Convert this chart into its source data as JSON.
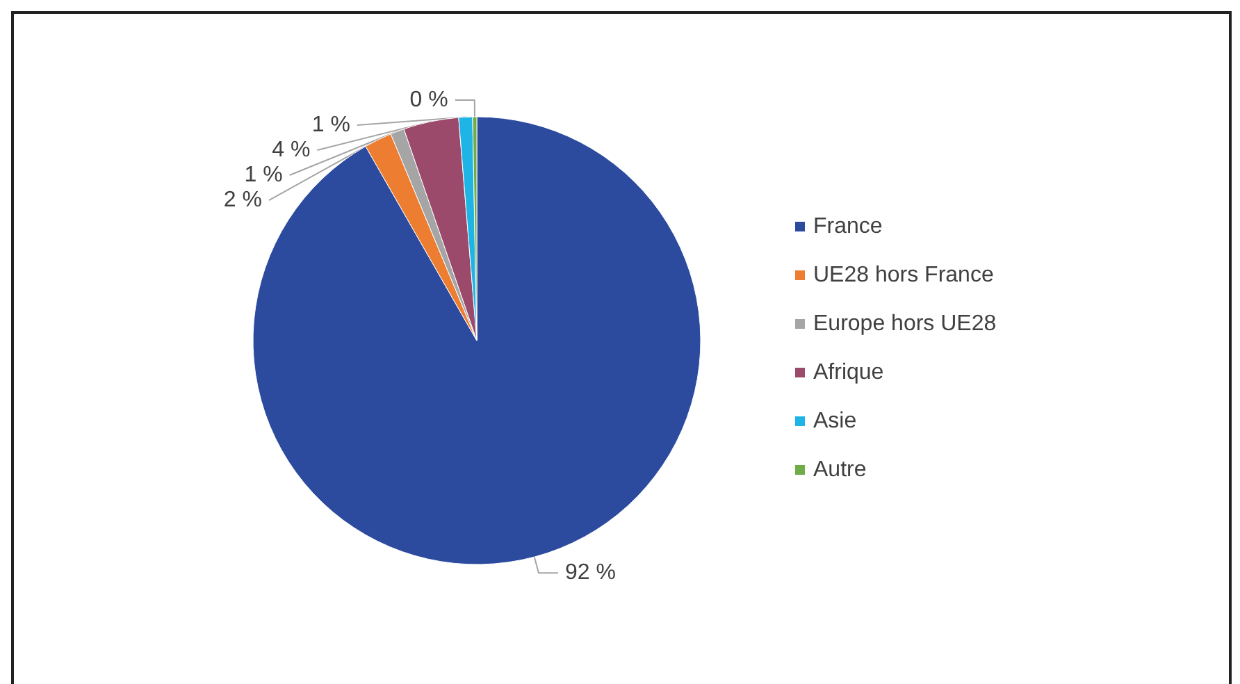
{
  "chart_data": {
    "type": "pie",
    "categories": [
      "France",
      "UE28 hors France",
      "Europe hors UE28",
      "Afrique",
      "Asie",
      "Autre"
    ],
    "values": [
      92,
      2,
      1,
      4,
      1,
      0.3
    ],
    "value_labels": [
      "92 %",
      "2 %",
      "1 %",
      "4 %",
      "1 %",
      "0 %"
    ],
    "colors": [
      "#2c4b9f",
      "#ed7d31",
      "#a5a5a5",
      "#9b4a6b",
      "#1fb4e6",
      "#70ad47"
    ],
    "legend": "right"
  }
}
